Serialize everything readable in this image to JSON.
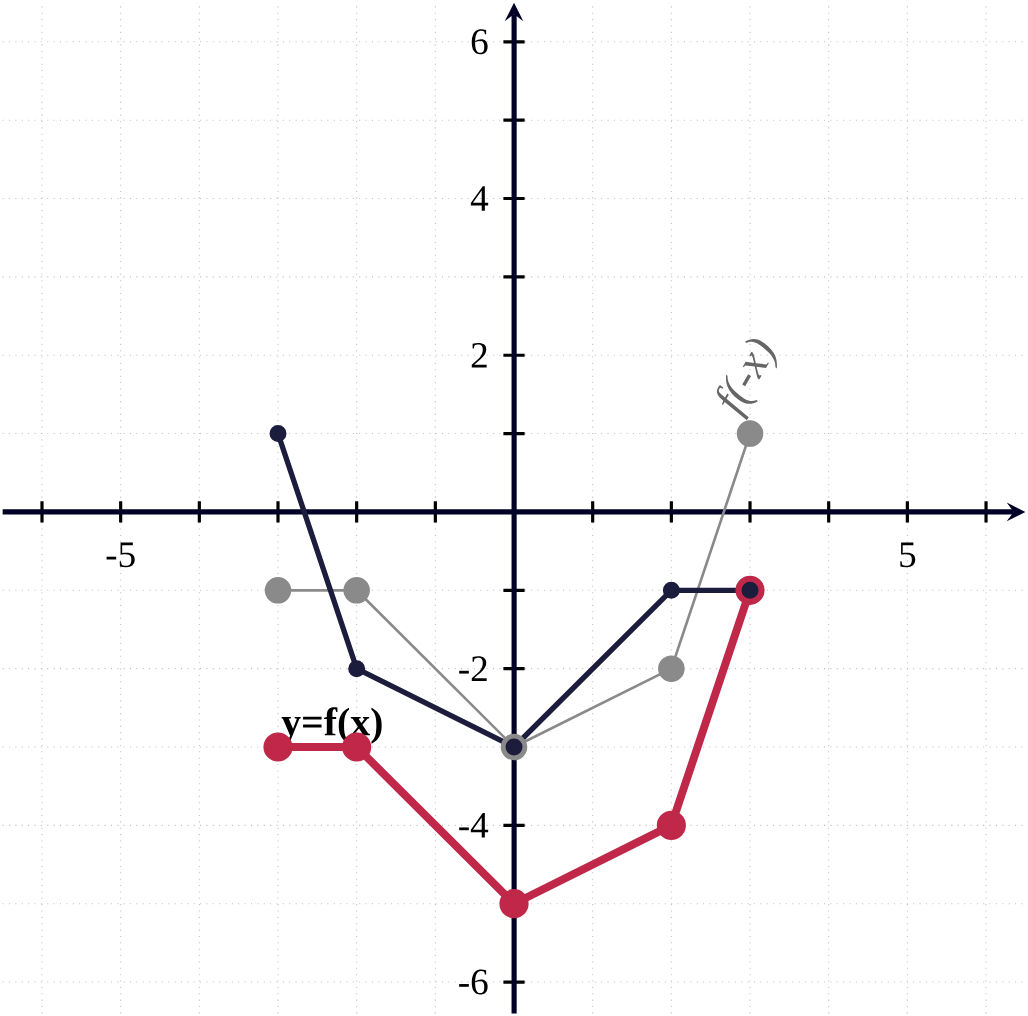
{
  "chart_data": {
    "type": "line",
    "x": [
      -3,
      -2,
      0,
      2,
      3
    ],
    "series": [
      {
        "color": "#8a8a8a",
        "values": [
          -1,
          -1,
          -3,
          -2,
          1
        ]
      },
      {
        "color": "#c0284a",
        "values": [
          -3,
          -3,
          -5,
          -4,
          -1
        ]
      },
      {
        "color": "#1c1c3c",
        "values": [
          1,
          -2,
          -3,
          -1,
          -1
        ]
      }
    ],
    "xlim": [
      -6.5,
      6.5
    ],
    "ylim": [
      -6.4,
      6.5
    ],
    "xticks": [
      {
        "value": -6,
        "label": null
      },
      {
        "value": -5,
        "label": "-5"
      },
      {
        "value": -4,
        "label": null
      },
      {
        "value": -3,
        "label": null
      },
      {
        "value": -2,
        "label": null
      },
      {
        "value": -1,
        "label": null
      },
      {
        "value": 1,
        "label": null
      },
      {
        "value": 2,
        "label": null
      },
      {
        "value": 3,
        "label": null
      },
      {
        "value": 4,
        "label": null
      },
      {
        "value": 5,
        "label": "5"
      },
      {
        "value": 6,
        "label": null
      }
    ],
    "yticks": [
      {
        "value": -6,
        "label": "-6"
      },
      {
        "value": -5,
        "label": null
      },
      {
        "value": -4,
        "label": "-4"
      },
      {
        "value": -3,
        "label": null
      },
      {
        "value": -2,
        "label": "-2"
      },
      {
        "value": -1,
        "label": null
      },
      {
        "value": 1,
        "label": null
      },
      {
        "value": 2,
        "label": "2"
      },
      {
        "value": 3,
        "label": null
      },
      {
        "value": 4,
        "label": "4"
      },
      {
        "value": 5,
        "label": null
      },
      {
        "value": 6,
        "label": "6"
      }
    ],
    "grid": true,
    "marker": "circle",
    "line_style": "solid",
    "annotations": [
      {
        "text": "y=f(x)",
        "x": -3,
        "y": -3
      },
      {
        "text": "f(-x)",
        "x": 3,
        "y": 1
      }
    ]
  }
}
